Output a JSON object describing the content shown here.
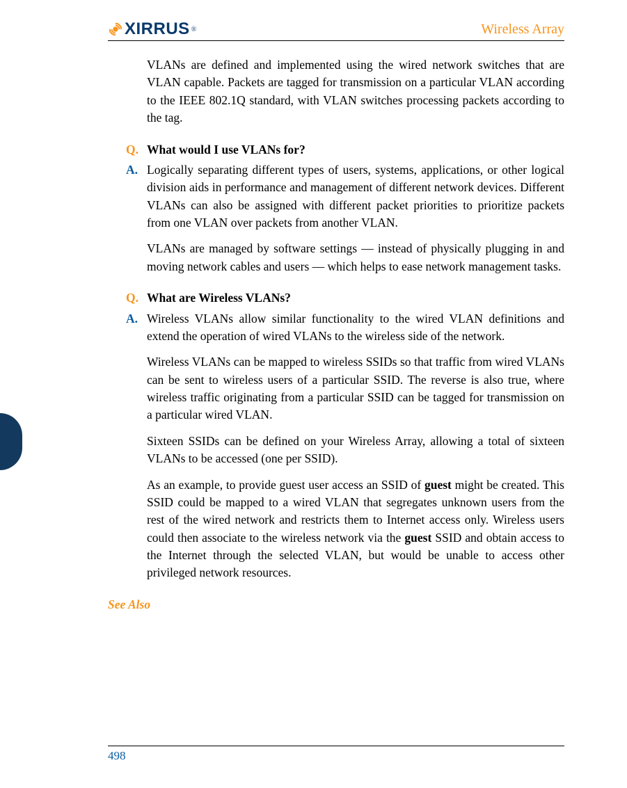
{
  "colors": {
    "accent_orange": "#f7941d",
    "accent_blue": "#0a5ca0",
    "logo_blue": "#0a3a6b",
    "body_text": "#000000",
    "tab_dark": "#133a5e",
    "rule": "#000000",
    "background": "#ffffff"
  },
  "typography": {
    "body_family": "Palatino Linotype, Book Antiqua, Palatino, Georgia, serif",
    "body_size_pt": 13,
    "title_size_pt": 15,
    "logo_family": "Arial, Helvetica, sans-serif",
    "logo_weight": 900
  },
  "header": {
    "logo_text": "XIRRUS",
    "logo_registered": "®",
    "doc_title": "Wireless Array"
  },
  "intro_paragraph": "VLANs are defined and implemented using the wired network switches that are VLAN capable. Packets are tagged for transmission on a particular VLAN according to the IEEE 802.1Q standard, with VLAN switches processing packets according to the tag.",
  "qa": [
    {
      "q_marker": "Q.",
      "a_marker": "A.",
      "question": "What would I use VLANs for?",
      "answer_paragraphs": [
        "Logically separating different types of users, systems, applications, or other logical division aids in performance and management of different network devices. Different VLANs can also be assigned with different packet priorities to prioritize packets from one VLAN over packets from another VLAN.",
        "VLANs are managed by software settings — instead of physically plugging in and moving network cables and users — which helps to ease network management tasks."
      ]
    },
    {
      "q_marker": "Q.",
      "a_marker": "A.",
      "question": "What are Wireless VLANs?",
      "answer_paragraphs": [
        "Wireless VLANs allow similar functionality to the wired VLAN definitions and extend the operation of wired VLANs to the wireless side of the network.",
        "Wireless VLANs can be mapped to wireless SSIDs so that traffic from wired VLANs can be sent to wireless users of a particular SSID. The reverse is also true, where wireless traffic originating from a particular SSID can be tagged for transmission on a particular wired VLAN.",
        "Sixteen SSIDs can be defined on your Wireless Array, allowing a total of sixteen VLANs to be accessed (one per SSID)."
      ],
      "answer_rich_paragraph": {
        "segments": [
          {
            "text": "As an example, to provide guest user access an SSID of ",
            "bold": false
          },
          {
            "text": "guest",
            "bold": true
          },
          {
            "text": " might be created. This SSID could be mapped to a wired VLAN that segregates unknown users from the rest of the wired network and restricts them to Internet access only. Wireless users could then associate to the wireless network via the ",
            "bold": false
          },
          {
            "text": "guest",
            "bold": true
          },
          {
            "text": " SSID and obtain access to the Internet through the selected VLAN, but would be unable to access other privileged network resources.",
            "bold": false
          }
        ]
      }
    }
  ],
  "see_also_label": "See Also",
  "page_number": "498"
}
